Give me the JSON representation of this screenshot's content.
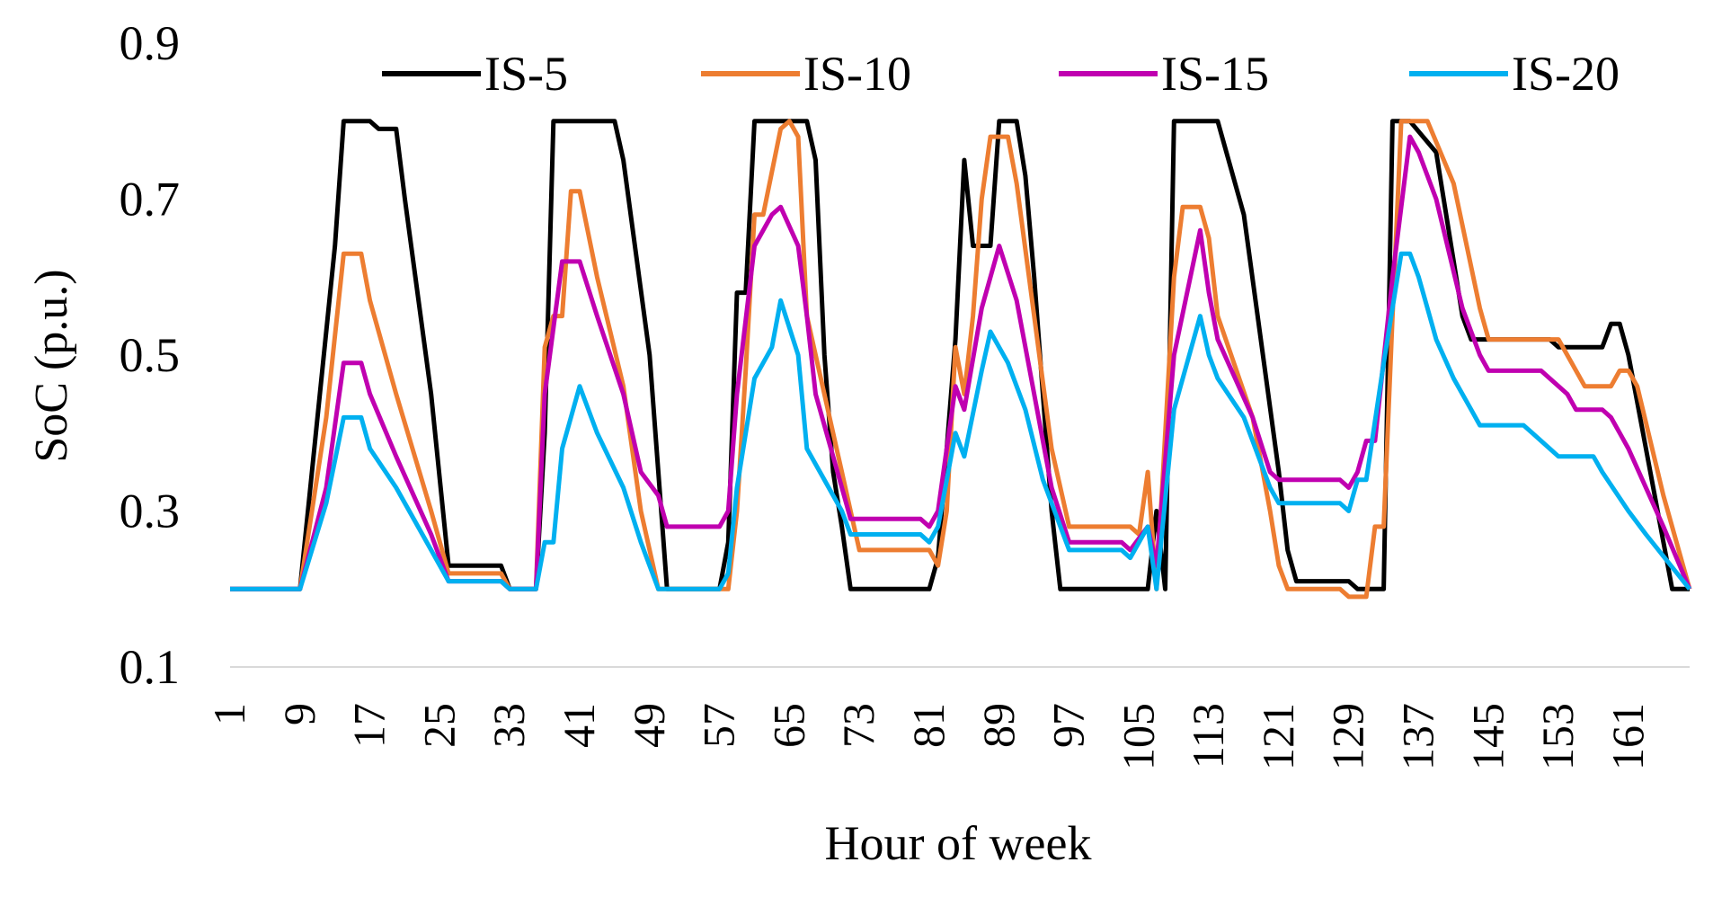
{
  "chart_data": {
    "type": "line",
    "title": "",
    "xlabel": "Hour of week",
    "ylabel": "SoC (p.u.)",
    "ylim": [
      0.1,
      0.9
    ],
    "yticks": [
      0.1,
      0.3,
      0.5,
      0.7,
      0.9
    ],
    "xlim": [
      1,
      168
    ],
    "xticks": [
      1,
      9,
      17,
      25,
      33,
      41,
      49,
      57,
      65,
      73,
      81,
      89,
      97,
      105,
      113,
      121,
      129,
      137,
      145,
      153,
      161
    ],
    "grid": "horizontal at baseline",
    "legend_position": "top",
    "series": [
      {
        "name": "IS-5",
        "color": "#000000",
        "points": [
          [
            1,
            0.2
          ],
          [
            9,
            0.2
          ],
          [
            13,
            0.64
          ],
          [
            14,
            0.8
          ],
          [
            17,
            0.8
          ],
          [
            18,
            0.79
          ],
          [
            20,
            0.79
          ],
          [
            21,
            0.7
          ],
          [
            24,
            0.45
          ],
          [
            26,
            0.23
          ],
          [
            32,
            0.23
          ],
          [
            33,
            0.2
          ],
          [
            36,
            0.2
          ],
          [
            37,
            0.4
          ],
          [
            38,
            0.8
          ],
          [
            45,
            0.8
          ],
          [
            46,
            0.75
          ],
          [
            49,
            0.5
          ],
          [
            50,
            0.35
          ],
          [
            51,
            0.2
          ],
          [
            57,
            0.2
          ],
          [
            58,
            0.26
          ],
          [
            59,
            0.58
          ],
          [
            60,
            0.58
          ],
          [
            61,
            0.8
          ],
          [
            67,
            0.8
          ],
          [
            68,
            0.75
          ],
          [
            69,
            0.5
          ],
          [
            70,
            0.35
          ],
          [
            71,
            0.28
          ],
          [
            72,
            0.2
          ],
          [
            81,
            0.2
          ],
          [
            82,
            0.24
          ],
          [
            84,
            0.52
          ],
          [
            85,
            0.75
          ],
          [
            86,
            0.64
          ],
          [
            88,
            0.64
          ],
          [
            89,
            0.8
          ],
          [
            91,
            0.8
          ],
          [
            92,
            0.73
          ],
          [
            93,
            0.6
          ],
          [
            95,
            0.3
          ],
          [
            96,
            0.2
          ],
          [
            106,
            0.2
          ],
          [
            107,
            0.3
          ],
          [
            108,
            0.2
          ],
          [
            109,
            0.8
          ],
          [
            114,
            0.8
          ],
          [
            116,
            0.72
          ],
          [
            117,
            0.68
          ],
          [
            121,
            0.35
          ],
          [
            122,
            0.25
          ],
          [
            123,
            0.21
          ],
          [
            129,
            0.21
          ],
          [
            130,
            0.2
          ],
          [
            133,
            0.2
          ],
          [
            134,
            0.8
          ],
          [
            136,
            0.8
          ],
          [
            139,
            0.76
          ],
          [
            142,
            0.55
          ],
          [
            143,
            0.52
          ],
          [
            152,
            0.52
          ],
          [
            153,
            0.51
          ],
          [
            158,
            0.51
          ],
          [
            159,
            0.54
          ],
          [
            160,
            0.54
          ],
          [
            161,
            0.5
          ],
          [
            163,
            0.38
          ],
          [
            166,
            0.2
          ],
          [
            168,
            0.2
          ]
        ]
      },
      {
        "name": "IS-10",
        "color": "#ED7D31",
        "points": [
          [
            1,
            0.2
          ],
          [
            9,
            0.2
          ],
          [
            12,
            0.42
          ],
          [
            14,
            0.63
          ],
          [
            16,
            0.63
          ],
          [
            17,
            0.57
          ],
          [
            20,
            0.45
          ],
          [
            24,
            0.3
          ],
          [
            26,
            0.22
          ],
          [
            32,
            0.22
          ],
          [
            33,
            0.2
          ],
          [
            36,
            0.2
          ],
          [
            37,
            0.51
          ],
          [
            38,
            0.55
          ],
          [
            39,
            0.55
          ],
          [
            40,
            0.71
          ],
          [
            41,
            0.71
          ],
          [
            43,
            0.6
          ],
          [
            46,
            0.46
          ],
          [
            48,
            0.3
          ],
          [
            50,
            0.2
          ],
          [
            58,
            0.2
          ],
          [
            59,
            0.3
          ],
          [
            60,
            0.48
          ],
          [
            61,
            0.68
          ],
          [
            62,
            0.68
          ],
          [
            64,
            0.79
          ],
          [
            65,
            0.8
          ],
          [
            66,
            0.78
          ],
          [
            67,
            0.55
          ],
          [
            68,
            0.5
          ],
          [
            71,
            0.35
          ],
          [
            72,
            0.3
          ],
          [
            73,
            0.25
          ],
          [
            81,
            0.25
          ],
          [
            82,
            0.23
          ],
          [
            83,
            0.3
          ],
          [
            84,
            0.51
          ],
          [
            85,
            0.45
          ],
          [
            86,
            0.55
          ],
          [
            87,
            0.7
          ],
          [
            88,
            0.78
          ],
          [
            90,
            0.78
          ],
          [
            91,
            0.72
          ],
          [
            93,
            0.55
          ],
          [
            95,
            0.38
          ],
          [
            97,
            0.28
          ],
          [
            104,
            0.28
          ],
          [
            105,
            0.27
          ],
          [
            106,
            0.35
          ],
          [
            107,
            0.2
          ],
          [
            109,
            0.6
          ],
          [
            110,
            0.69
          ],
          [
            112,
            0.69
          ],
          [
            113,
            0.65
          ],
          [
            114,
            0.55
          ],
          [
            118,
            0.42
          ],
          [
            120,
            0.3
          ],
          [
            121,
            0.23
          ],
          [
            122,
            0.2
          ],
          [
            128,
            0.2
          ],
          [
            129,
            0.19
          ],
          [
            131,
            0.19
          ],
          [
            132,
            0.28
          ],
          [
            133,
            0.28
          ],
          [
            134,
            0.55
          ],
          [
            135,
            0.8
          ],
          [
            138,
            0.8
          ],
          [
            141,
            0.72
          ],
          [
            144,
            0.56
          ],
          [
            145,
            0.52
          ],
          [
            153,
            0.52
          ],
          [
            156,
            0.46
          ],
          [
            159,
            0.46
          ],
          [
            160,
            0.48
          ],
          [
            161,
            0.48
          ],
          [
            162,
            0.46
          ],
          [
            165,
            0.32
          ],
          [
            168,
            0.2
          ]
        ]
      },
      {
        "name": "IS-15",
        "color": "#C000B0",
        "points": [
          [
            1,
            0.2
          ],
          [
            9,
            0.2
          ],
          [
            12,
            0.33
          ],
          [
            14,
            0.49
          ],
          [
            16,
            0.49
          ],
          [
            17,
            0.45
          ],
          [
            20,
            0.37
          ],
          [
            24,
            0.27
          ],
          [
            26,
            0.21
          ],
          [
            32,
            0.21
          ],
          [
            33,
            0.2
          ],
          [
            36,
            0.2
          ],
          [
            37,
            0.45
          ],
          [
            39,
            0.62
          ],
          [
            41,
            0.62
          ],
          [
            43,
            0.55
          ],
          [
            46,
            0.45
          ],
          [
            48,
            0.35
          ],
          [
            50,
            0.32
          ],
          [
            51,
            0.28
          ],
          [
            57,
            0.28
          ],
          [
            58,
            0.3
          ],
          [
            59,
            0.45
          ],
          [
            61,
            0.64
          ],
          [
            63,
            0.68
          ],
          [
            64,
            0.69
          ],
          [
            66,
            0.64
          ],
          [
            67,
            0.55
          ],
          [
            68,
            0.45
          ],
          [
            71,
            0.33
          ],
          [
            72,
            0.29
          ],
          [
            80,
            0.29
          ],
          [
            81,
            0.28
          ],
          [
            82,
            0.3
          ],
          [
            84,
            0.46
          ],
          [
            85,
            0.43
          ],
          [
            87,
            0.56
          ],
          [
            89,
            0.64
          ],
          [
            91,
            0.57
          ],
          [
            93,
            0.45
          ],
          [
            95,
            0.33
          ],
          [
            97,
            0.26
          ],
          [
            103,
            0.26
          ],
          [
            104,
            0.25
          ],
          [
            106,
            0.28
          ],
          [
            107,
            0.23
          ],
          [
            109,
            0.5
          ],
          [
            112,
            0.66
          ],
          [
            113,
            0.58
          ],
          [
            114,
            0.52
          ],
          [
            118,
            0.42
          ],
          [
            120,
            0.35
          ],
          [
            121,
            0.34
          ],
          [
            128,
            0.34
          ],
          [
            129,
            0.33
          ],
          [
            130,
            0.35
          ],
          [
            131,
            0.39
          ],
          [
            132,
            0.39
          ],
          [
            134,
            0.6
          ],
          [
            136,
            0.78
          ],
          [
            137,
            0.76
          ],
          [
            139,
            0.7
          ],
          [
            142,
            0.56
          ],
          [
            144,
            0.5
          ],
          [
            145,
            0.48
          ],
          [
            151,
            0.48
          ],
          [
            154,
            0.45
          ],
          [
            155,
            0.43
          ],
          [
            158,
            0.43
          ],
          [
            159,
            0.42
          ],
          [
            160,
            0.4
          ],
          [
            161,
            0.38
          ],
          [
            165,
            0.28
          ],
          [
            168,
            0.2
          ]
        ]
      },
      {
        "name": "IS-20",
        "color": "#00B0F0",
        "points": [
          [
            1,
            0.2
          ],
          [
            9,
            0.2
          ],
          [
            12,
            0.31
          ],
          [
            14,
            0.42
          ],
          [
            16,
            0.42
          ],
          [
            17,
            0.38
          ],
          [
            20,
            0.33
          ],
          [
            24,
            0.25
          ],
          [
            26,
            0.21
          ],
          [
            32,
            0.21
          ],
          [
            33,
            0.2
          ],
          [
            36,
            0.2
          ],
          [
            37,
            0.26
          ],
          [
            38,
            0.26
          ],
          [
            39,
            0.38
          ],
          [
            41,
            0.46
          ],
          [
            43,
            0.4
          ],
          [
            46,
            0.33
          ],
          [
            48,
            0.26
          ],
          [
            50,
            0.2
          ],
          [
            57,
            0.2
          ],
          [
            58,
            0.22
          ],
          [
            59,
            0.33
          ],
          [
            61,
            0.47
          ],
          [
            62,
            0.49
          ],
          [
            63,
            0.51
          ],
          [
            64,
            0.57
          ],
          [
            66,
            0.5
          ],
          [
            67,
            0.38
          ],
          [
            71,
            0.3
          ],
          [
            72,
            0.27
          ],
          [
            80,
            0.27
          ],
          [
            81,
            0.26
          ],
          [
            82,
            0.28
          ],
          [
            84,
            0.4
          ],
          [
            85,
            0.37
          ],
          [
            87,
            0.48
          ],
          [
            88,
            0.53
          ],
          [
            90,
            0.49
          ],
          [
            92,
            0.43
          ],
          [
            94,
            0.34
          ],
          [
            97,
            0.25
          ],
          [
            103,
            0.25
          ],
          [
            104,
            0.24
          ],
          [
            106,
            0.28
          ],
          [
            107,
            0.2
          ],
          [
            109,
            0.43
          ],
          [
            110,
            0.47
          ],
          [
            112,
            0.55
          ],
          [
            113,
            0.5
          ],
          [
            114,
            0.47
          ],
          [
            117,
            0.42
          ],
          [
            120,
            0.33
          ],
          [
            121,
            0.31
          ],
          [
            128,
            0.31
          ],
          [
            129,
            0.3
          ],
          [
            130,
            0.34
          ],
          [
            131,
            0.34
          ],
          [
            133,
            0.49
          ],
          [
            135,
            0.63
          ],
          [
            136,
            0.63
          ],
          [
            137,
            0.6
          ],
          [
            138,
            0.56
          ],
          [
            139,
            0.52
          ],
          [
            141,
            0.47
          ],
          [
            143,
            0.43
          ],
          [
            144,
            0.41
          ],
          [
            149,
            0.41
          ],
          [
            150,
            0.4
          ],
          [
            152,
            0.38
          ],
          [
            153,
            0.37
          ],
          [
            156,
            0.37
          ],
          [
            157,
            0.37
          ],
          [
            158,
            0.35
          ],
          [
            161,
            0.3
          ],
          [
            163,
            0.27
          ],
          [
            168,
            0.2
          ]
        ]
      }
    ]
  }
}
